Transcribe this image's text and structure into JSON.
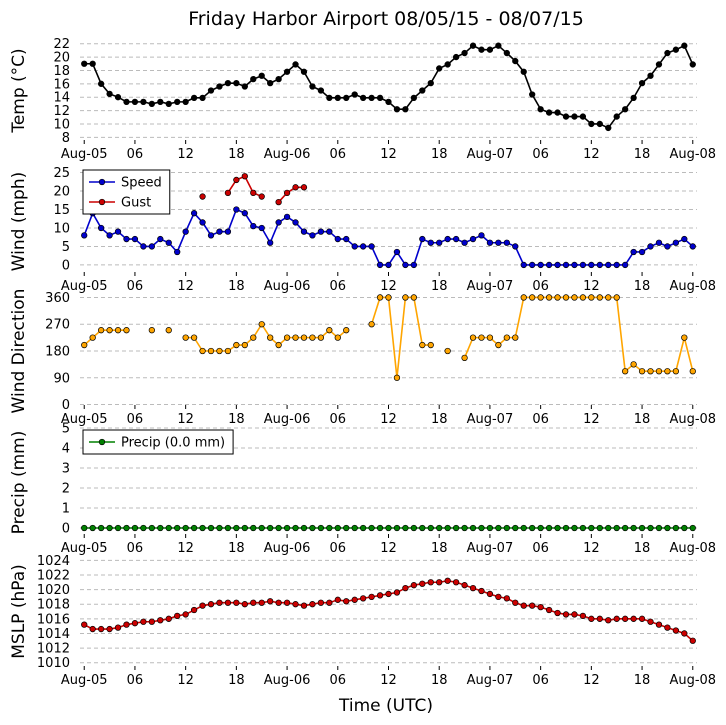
{
  "chart_data": [
    {
      "type": "line",
      "title": "Friday Harbor Airport 08/05/15 - 08/07/15",
      "ylabel": "Temp (°C)",
      "x": [
        0,
        1,
        2,
        3,
        4,
        5,
        6,
        7,
        8,
        9,
        10,
        11,
        12,
        13,
        14,
        15,
        16,
        17,
        18,
        19,
        20,
        21,
        22,
        23,
        24,
        25,
        26,
        27,
        28,
        29,
        30,
        31,
        32,
        33,
        34,
        35,
        36,
        37,
        38,
        39,
        40,
        41,
        42,
        43,
        44,
        45,
        46,
        47,
        48,
        49,
        50,
        51,
        52,
        53,
        54,
        55,
        56,
        57,
        58,
        59,
        60,
        61,
        62,
        63,
        64,
        65,
        66,
        67,
        68,
        69,
        70,
        71,
        72
      ],
      "xlim": [
        -0.5,
        72.5
      ],
      "xticks": [
        {
          "value": 0,
          "label": "Aug-05"
        },
        {
          "value": 6,
          "label": "06"
        },
        12,
        18,
        {
          "value": 24,
          "label": "Aug-06"
        },
        {
          "value": 30,
          "label": "06"
        },
        {
          "value": 36,
          "label": "12"
        },
        {
          "value": 42,
          "label": "18"
        },
        {
          "value": 48,
          "label": "Aug-07"
        },
        {
          "value": 54,
          "label": "06"
        },
        {
          "value": 60,
          "label": "12"
        },
        {
          "value": 66,
          "label": "18"
        },
        {
          "value": 72,
          "label": "Aug-08"
        }
      ],
      "ylim": [
        7,
        23
      ],
      "yticks": [
        8,
        10,
        12,
        14,
        16,
        18,
        20,
        22
      ],
      "grid": true,
      "series": [
        {
          "color": "#000000",
          "values": [
            19,
            19,
            16,
            14.5,
            14,
            13.3,
            13.3,
            13.3,
            13,
            13.3,
            13,
            13.3,
            13.3,
            13.9,
            13.9,
            15,
            15.6,
            16.1,
            16.1,
            15.6,
            16.7,
            17.2,
            16.1,
            16.7,
            17.8,
            18.9,
            17.8,
            15.6,
            15,
            13.9,
            13.9,
            13.9,
            14.4,
            13.9,
            13.9,
            13.9,
            13.3,
            12.2,
            12.2,
            13.9,
            15,
            16.1,
            18.3,
            18.9,
            20,
            20.6,
            21.7,
            21.1,
            21.1,
            21.7,
            20.6,
            19.4,
            17.8,
            14.4,
            12.2,
            11.7,
            11.7,
            11.1,
            11.1,
            11.1,
            10,
            10,
            9.4,
            11.1,
            12.2,
            13.9,
            16.1,
            17.2,
            18.9,
            20.6,
            21.1,
            21.7,
            18.9
          ]
        }
      ]
    },
    {
      "type": "line",
      "ylabel": "Wind (mph)",
      "x": [
        0,
        1,
        2,
        3,
        4,
        5,
        6,
        7,
        8,
        9,
        10,
        11,
        12,
        13,
        14,
        15,
        16,
        17,
        18,
        19,
        20,
        21,
        22,
        23,
        24,
        25,
        26,
        27,
        28,
        29,
        30,
        31,
        32,
        33,
        34,
        35,
        36,
        37,
        38,
        39,
        40,
        41,
        42,
        43,
        44,
        45,
        46,
        47,
        48,
        49,
        50,
        51,
        52,
        53,
        54,
        55,
        56,
        57,
        58,
        59,
        60,
        61,
        62,
        63,
        64,
        65,
        66,
        67,
        68,
        69,
        70,
        71,
        72
      ],
      "xlim": [
        -0.5,
        72.5
      ],
      "xticks": [
        {
          "value": 0,
          "label": "Aug-05"
        },
        {
          "value": 6,
          "label": "06"
        },
        12,
        18,
        {
          "value": 24,
          "label": "Aug-06"
        },
        {
          "value": 30,
          "label": "06"
        },
        {
          "value": 36,
          "label": "12"
        },
        {
          "value": 42,
          "label": "18"
        },
        {
          "value": 48,
          "label": "Aug-07"
        },
        {
          "value": 54,
          "label": "06"
        },
        {
          "value": 60,
          "label": "12"
        },
        {
          "value": 66,
          "label": "18"
        },
        {
          "value": 72,
          "label": "Aug-08"
        }
      ],
      "ylim": [
        -3,
        26.5
      ],
      "yticks": [
        0,
        5,
        10,
        15,
        20,
        25
      ],
      "grid": true,
      "legend": "upper left",
      "series": [
        {
          "name": "Speed",
          "color": "#0000cc",
          "values": [
            8,
            14,
            10,
            8,
            9,
            7,
            7,
            5,
            5,
            7,
            6,
            3.5,
            9,
            14,
            11.5,
            8,
            9,
            9,
            15,
            14,
            10.5,
            10,
            6,
            11.5,
            13,
            11.5,
            9,
            8,
            9,
            9,
            7,
            7,
            5,
            5,
            5,
            0,
            0,
            3.5,
            0,
            0,
            7,
            6,
            6,
            7,
            7,
            6,
            7,
            8,
            6,
            6,
            6,
            5,
            0,
            0,
            0,
            0,
            0,
            0,
            0,
            0,
            0,
            0,
            0,
            0,
            0,
            3.5,
            3.5,
            5,
            6,
            5,
            6,
            7,
            5
          ]
        },
        {
          "name": "Gust",
          "color": "#cc0000",
          "values": [
            null,
            null,
            null,
            null,
            null,
            null,
            null,
            null,
            null,
            null,
            null,
            null,
            null,
            null,
            18.5,
            null,
            null,
            19.5,
            23,
            24,
            19.5,
            18.5,
            null,
            17,
            19.5,
            21,
            21,
            null,
            null,
            null,
            null,
            null,
            null,
            null,
            null,
            null,
            null,
            null,
            null,
            null,
            null,
            null,
            null,
            null,
            null,
            null,
            null,
            null,
            null,
            null,
            null,
            null,
            null,
            null,
            null,
            null,
            null,
            null,
            null,
            null,
            null,
            null,
            null,
            null,
            null,
            null,
            null,
            null,
            null,
            null,
            null,
            null,
            null
          ]
        }
      ]
    },
    {
      "type": "line",
      "ylabel": "Wind Direction",
      "x": [
        0,
        1,
        2,
        3,
        4,
        5,
        6,
        7,
        8,
        9,
        10,
        11,
        12,
        13,
        14,
        15,
        16,
        17,
        18,
        19,
        20,
        21,
        22,
        23,
        24,
        25,
        26,
        27,
        28,
        29,
        30,
        31,
        32,
        33,
        34,
        35,
        36,
        37,
        38,
        39,
        40,
        41,
        42,
        43,
        44,
        45,
        46,
        47,
        48,
        49,
        50,
        51,
        52,
        53,
        54,
        55,
        56,
        57,
        58,
        59,
        60,
        61,
        62,
        63,
        64,
        65,
        66,
        67,
        68,
        69,
        70,
        71,
        72
      ],
      "xlim": [
        -0.5,
        72.5
      ],
      "xticks": [
        {
          "value": 0,
          "label": "Aug-05"
        },
        {
          "value": 6,
          "label": "06"
        },
        12,
        18,
        {
          "value": 24,
          "label": "Aug-06"
        },
        {
          "value": 30,
          "label": "06"
        },
        {
          "value": 36,
          "label": "12"
        },
        {
          "value": 42,
          "label": "18"
        },
        {
          "value": 48,
          "label": "Aug-07"
        },
        {
          "value": 54,
          "label": "06"
        },
        {
          "value": 60,
          "label": "12"
        },
        {
          "value": 66,
          "label": "18"
        },
        {
          "value": 72,
          "label": "Aug-08"
        }
      ],
      "ylim": [
        -15,
        375
      ],
      "yticks": [
        0,
        90,
        180,
        270,
        360
      ],
      "grid": true,
      "series": [
        {
          "color": "#ffa500",
          "values": [
            200,
            225,
            250,
            250,
            250,
            250,
            null,
            null,
            250,
            null,
            250,
            null,
            225,
            225,
            180,
            180,
            180,
            180,
            200,
            200,
            225,
            270,
            225,
            200,
            225,
            225,
            225,
            225,
            225,
            250,
            225,
            250,
            null,
            null,
            270,
            360,
            360,
            90,
            360,
            360,
            200,
            200,
            null,
            180,
            null,
            157,
            225,
            225,
            225,
            200,
            225,
            225,
            360,
            360,
            360,
            360,
            360,
            360,
            360,
            360,
            360,
            360,
            360,
            360,
            112,
            135,
            112,
            112,
            112,
            112,
            112,
            225,
            112
          ]
        }
      ]
    },
    {
      "type": "line",
      "ylabel": "Precip (mm)",
      "x": [
        0,
        1,
        2,
        3,
        4,
        5,
        6,
        7,
        8,
        9,
        10,
        11,
        12,
        13,
        14,
        15,
        16,
        17,
        18,
        19,
        20,
        21,
        22,
        23,
        24,
        25,
        26,
        27,
        28,
        29,
        30,
        31,
        32,
        33,
        34,
        35,
        36,
        37,
        38,
        39,
        40,
        41,
        42,
        43,
        44,
        45,
        46,
        47,
        48,
        49,
        50,
        51,
        52,
        53,
        54,
        55,
        56,
        57,
        58,
        59,
        60,
        61,
        62,
        63,
        64,
        65,
        66,
        67,
        68,
        69,
        70,
        71,
        72
      ],
      "xlim": [
        -0.5,
        72.5
      ],
      "xticks": [
        {
          "value": 0,
          "label": "Aug-05"
        },
        {
          "value": 6,
          "label": "06"
        },
        12,
        18,
        {
          "value": 24,
          "label": "Aug-06"
        },
        {
          "value": 30,
          "label": "06"
        },
        {
          "value": 36,
          "label": "12"
        },
        {
          "value": 42,
          "label": "18"
        },
        {
          "value": 48,
          "label": "Aug-07"
        },
        {
          "value": 54,
          "label": "06"
        },
        {
          "value": 60,
          "label": "12"
        },
        {
          "value": 66,
          "label": "18"
        },
        {
          "value": 72,
          "label": "Aug-08"
        }
      ],
      "ylim": [
        -0.5,
        5.05
      ],
      "yticks": [
        0,
        1,
        2,
        3,
        4,
        5
      ],
      "grid": true,
      "legend": "upper left",
      "series": [
        {
          "name": "Precip (0.0 mm)",
          "color": "#008000",
          "values": [
            0,
            0,
            0,
            0,
            0,
            0,
            0,
            0,
            0,
            0,
            0,
            0,
            0,
            0,
            0,
            0,
            0,
            0,
            0,
            0,
            0,
            0,
            0,
            0,
            0,
            0,
            0,
            0,
            0,
            0,
            0,
            0,
            0,
            0,
            0,
            0,
            0,
            0,
            0,
            0,
            0,
            0,
            0,
            0,
            0,
            0,
            0,
            0,
            0,
            0,
            0,
            0,
            0,
            0,
            0,
            0,
            0,
            0,
            0,
            0,
            0,
            0,
            0,
            0,
            0,
            0,
            0,
            0,
            0,
            0,
            0,
            0,
            0
          ]
        }
      ]
    },
    {
      "type": "line",
      "ylabel": "MSLP (hPa)",
      "xlabel": "Time (UTC)",
      "x": [
        0,
        1,
        2,
        3,
        4,
        5,
        6,
        7,
        8,
        9,
        10,
        11,
        12,
        13,
        14,
        15,
        16,
        17,
        18,
        19,
        20,
        21,
        22,
        23,
        24,
        25,
        26,
        27,
        28,
        29,
        30,
        31,
        32,
        33,
        34,
        35,
        36,
        37,
        38,
        39,
        40,
        41,
        42,
        43,
        44,
        45,
        46,
        47,
        48,
        49,
        50,
        51,
        52,
        53,
        54,
        55,
        56,
        57,
        58,
        59,
        60,
        61,
        62,
        63,
        64,
        65,
        66,
        67,
        68,
        69,
        70,
        71,
        72
      ],
      "xlim": [
        -0.5,
        72.5
      ],
      "xticks": [
        {
          "value": 0,
          "label": "Aug-05"
        },
        {
          "value": 6,
          "label": "06"
        },
        12,
        18,
        {
          "value": 24,
          "label": "Aug-06"
        },
        {
          "value": 30,
          "label": "06"
        },
        {
          "value": 36,
          "label": "12"
        },
        {
          "value": 42,
          "label": "18"
        },
        {
          "value": 48,
          "label": "Aug-07"
        },
        {
          "value": 54,
          "label": "06"
        },
        {
          "value": 60,
          "label": "12"
        },
        {
          "value": 66,
          "label": "18"
        },
        {
          "value": 72,
          "label": "Aug-08"
        }
      ],
      "ylim": [
        1009,
        1025
      ],
      "yticks": [
        1010,
        1012,
        1014,
        1016,
        1018,
        1020,
        1022,
        1024
      ],
      "grid": true,
      "series": [
        {
          "color": "#cc0000",
          "values": [
            1015.2,
            1014.6,
            1014.6,
            1014.6,
            1014.8,
            1015.2,
            1015.4,
            1015.6,
            1015.6,
            1015.8,
            1016,
            1016.4,
            1016.6,
            1017.2,
            1017.8,
            1018,
            1018.2,
            1018.2,
            1018.2,
            1018,
            1018.2,
            1018.2,
            1018.4,
            1018.2,
            1018.2,
            1018,
            1017.8,
            1018,
            1018.2,
            1018.2,
            1018.6,
            1018.4,
            1018.6,
            1018.8,
            1019,
            1019.2,
            1019.4,
            1019.6,
            1020.2,
            1020.6,
            1020.8,
            1021,
            1021,
            1021.2,
            1021,
            1020.6,
            1020.2,
            1019.8,
            1019.4,
            1019,
            1018.8,
            1018.2,
            1017.8,
            1017.8,
            1017.6,
            1017.2,
            1016.8,
            1016.6,
            1016.6,
            1016.4,
            1016,
            1016,
            1015.8,
            1016,
            1016,
            1016,
            1016,
            1015.6,
            1015.2,
            1014.8,
            1014.4,
            1014,
            1013
          ]
        }
      ]
    }
  ]
}
